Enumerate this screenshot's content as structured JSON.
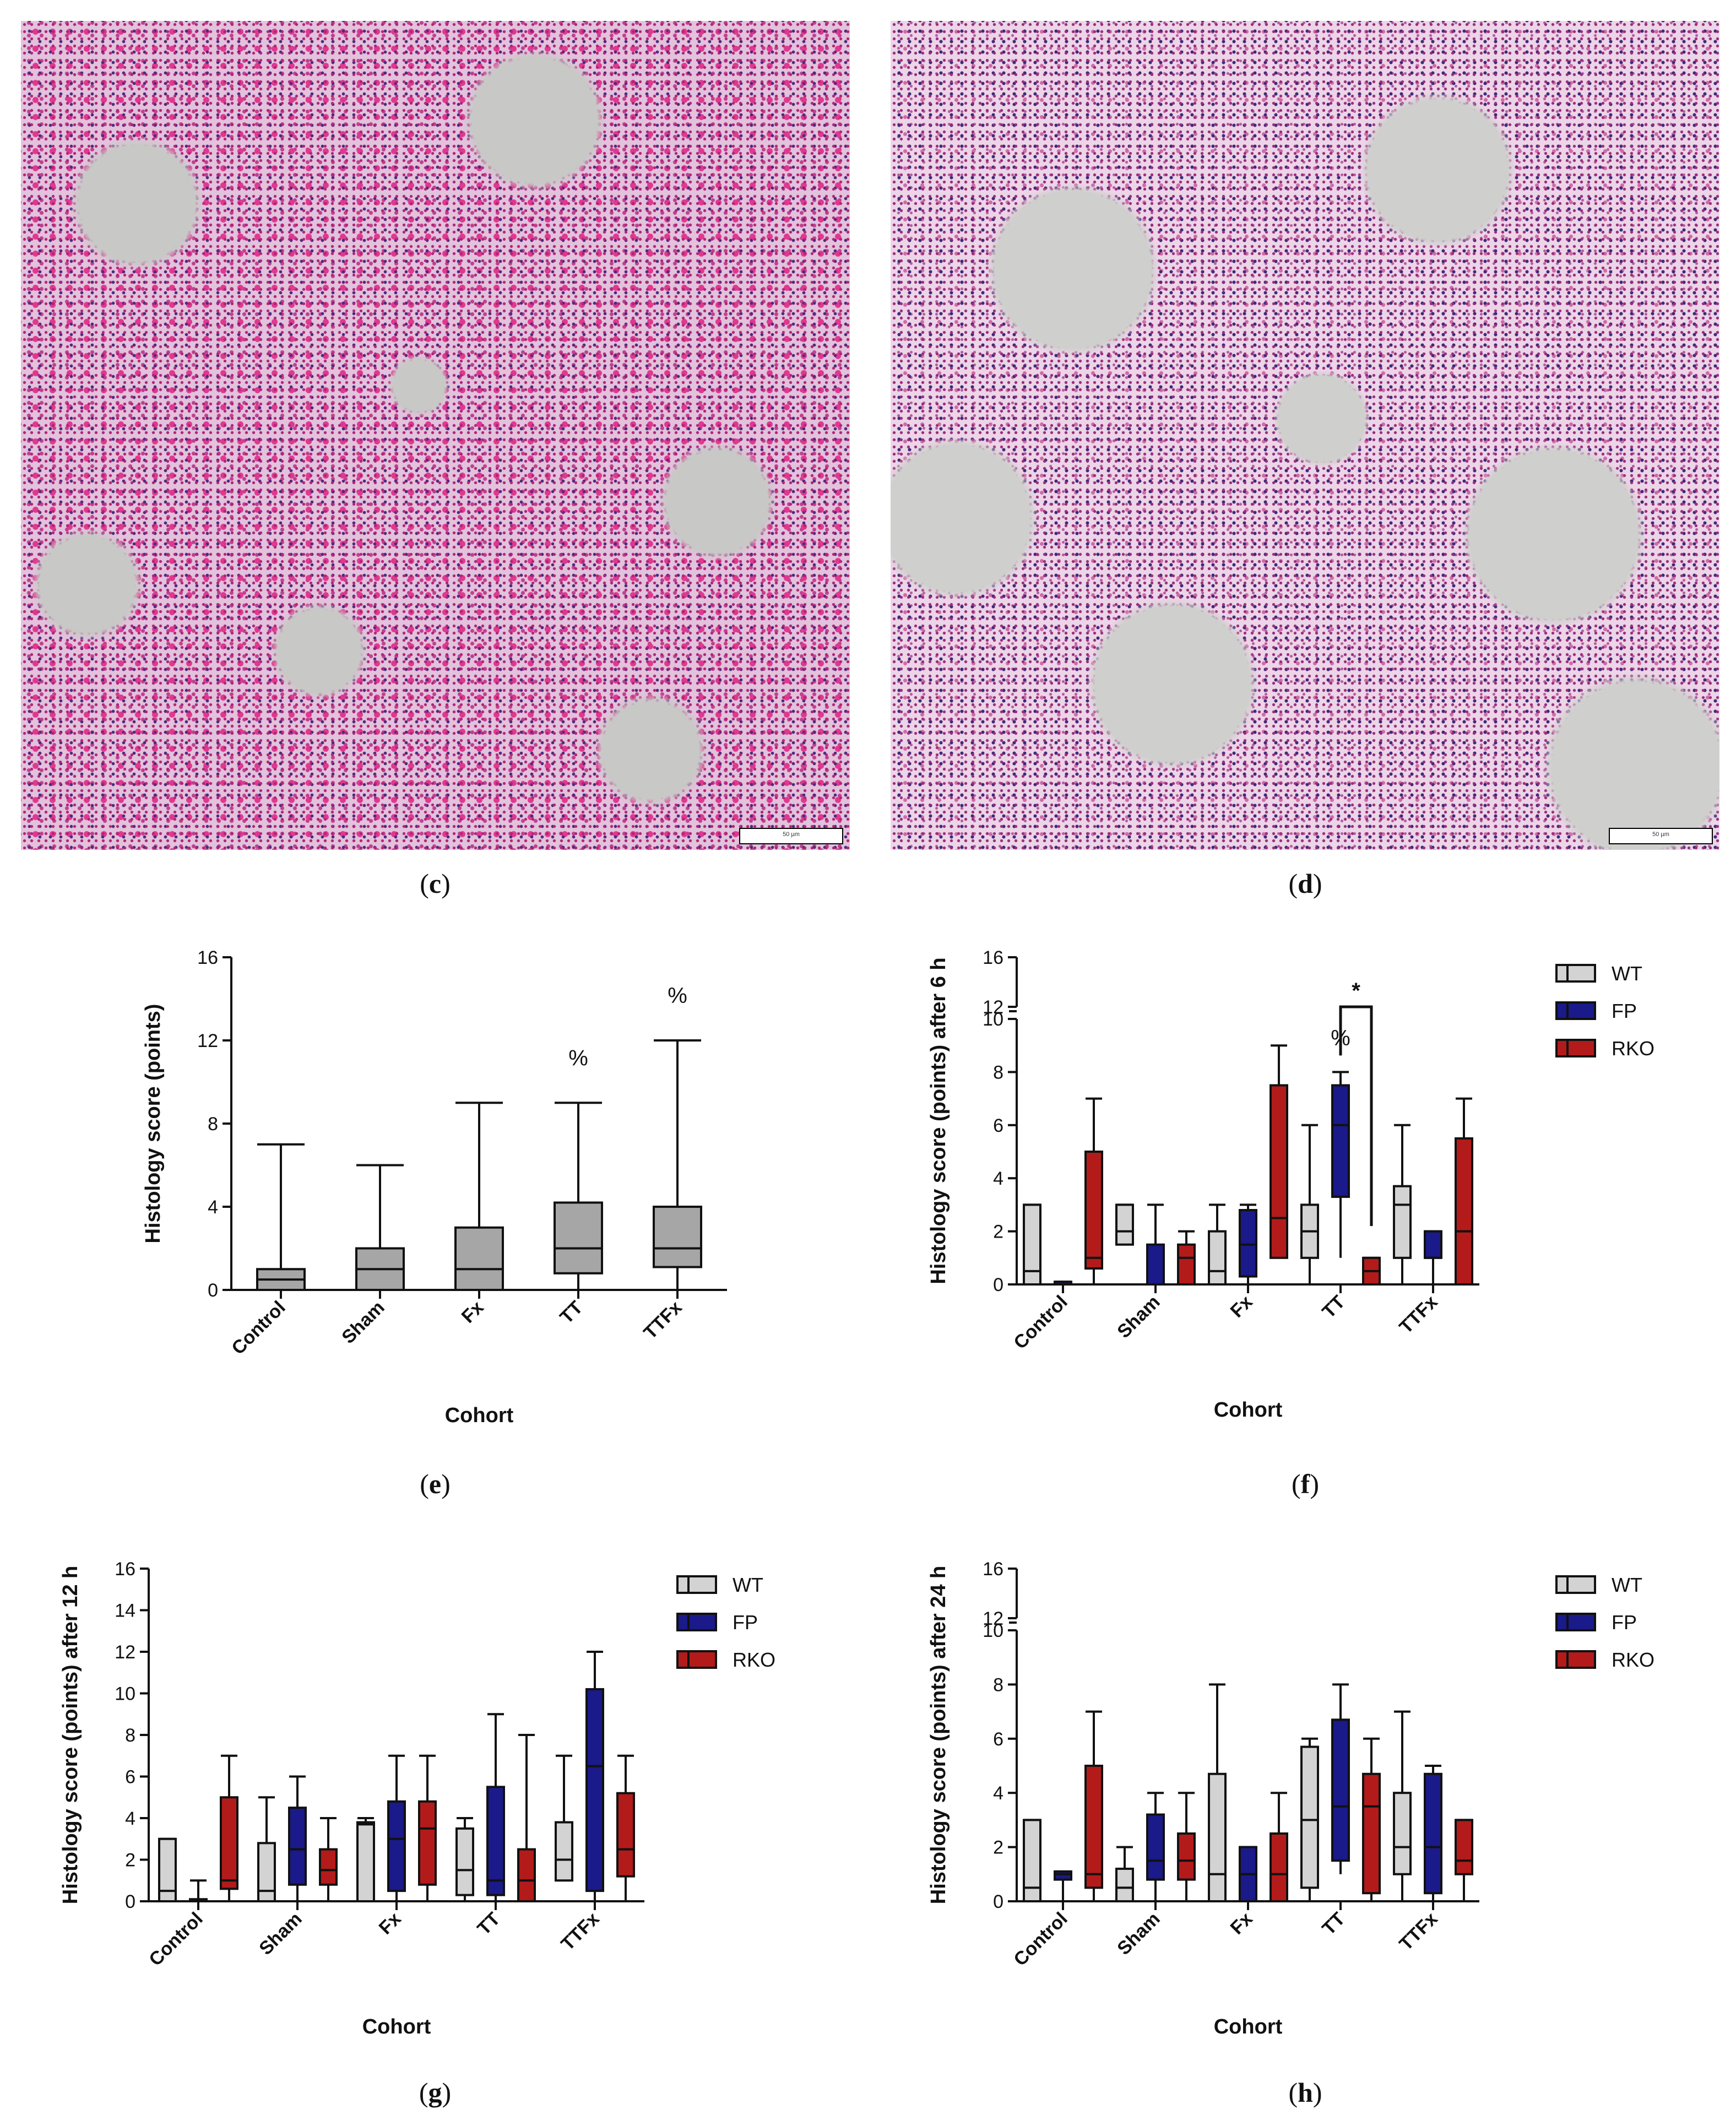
{
  "panels": {
    "c": "c",
    "d": "d",
    "e": "e",
    "f": "f",
    "g": "g",
    "h": "h"
  },
  "micrographs": {
    "c": {
      "scale_bar": "50 µm"
    },
    "d": {
      "scale_bar": "50 µm"
    }
  },
  "colors": {
    "WT": "#d3d3d3",
    "FP": "#1a1a8a",
    "RKO": "#b31b1b",
    "pooled": "#a6a6a6"
  },
  "chart_data": [
    {
      "id": "e",
      "type": "box",
      "title": "",
      "xlabel": "Cohort",
      "ylabel": "Histology score (points)",
      "ylim": [
        0,
        16
      ],
      "yticks": [
        0,
        4,
        8,
        12,
        16
      ],
      "categories": [
        "Control",
        "Sham",
        "Fx",
        "TT",
        "TTFx"
      ],
      "series": [
        {
          "color": "#a6a6a6",
          "boxes": [
            {
              "min": 0,
              "q1": 0,
              "median": 0.5,
              "q3": 1,
              "max": 7
            },
            {
              "min": 0,
              "q1": 0,
              "median": 1,
              "q3": 2,
              "max": 6
            },
            {
              "min": 0,
              "q1": 0,
              "median": 1,
              "q3": 3,
              "max": 9
            },
            {
              "min": 0,
              "q1": 0.8,
              "median": 2,
              "q3": 4.2,
              "max": 9
            },
            {
              "min": 0,
              "q1": 1.1,
              "median": 2,
              "q3": 4,
              "max": 12
            }
          ]
        }
      ],
      "annotations": [
        {
          "category": "TT",
          "text": "%",
          "y": 10.8
        },
        {
          "category": "TTFx",
          "text": "%",
          "y": 13.8
        }
      ]
    },
    {
      "id": "f",
      "type": "box",
      "title": "",
      "xlabel": "Cohort",
      "ylabel": "Histology score (points) after 6 h",
      "ylim": [
        0,
        16
      ],
      "axis_break": {
        "from": 10,
        "to": 12
      },
      "yticks": [
        0,
        2,
        4,
        6,
        8,
        10,
        12,
        16
      ],
      "categories": [
        "Control",
        "Sham",
        "Fx",
        "TT",
        "TTFx"
      ],
      "legend": [
        "WT",
        "FP",
        "RKO"
      ],
      "series": [
        {
          "name": "WT",
          "boxes": [
            {
              "min": 0,
              "q1": 0,
              "median": 0.5,
              "q3": 3,
              "max": 3
            },
            {
              "min": 1.5,
              "q1": 1.5,
              "median": 2,
              "q3": 3,
              "max": 3
            },
            {
              "min": 0,
              "q1": 0,
              "median": 0.5,
              "q3": 2,
              "max": 3
            },
            {
              "min": 0,
              "q1": 1,
              "median": 2,
              "q3": 3,
              "max": 6
            },
            {
              "min": 0,
              "q1": 1,
              "median": 3,
              "q3": 3.7,
              "max": 6
            }
          ]
        },
        {
          "name": "FP",
          "boxes": [
            {
              "min": 0,
              "q1": 0,
              "median": 0,
              "q3": 0.1,
              "max": 0.1
            },
            {
              "min": 0,
              "q1": 0,
              "median": 0,
              "q3": 1.5,
              "max": 3
            },
            {
              "min": 0,
              "q1": 0.3,
              "median": 1.5,
              "q3": 2.8,
              "max": 3
            },
            {
              "min": 1,
              "q1": 3.3,
              "median": 6,
              "q3": 7.5,
              "max": 8
            },
            {
              "min": 0,
              "q1": 1,
              "median": 1,
              "q3": 2,
              "max": 2
            }
          ]
        },
        {
          "name": "RKO",
          "boxes": [
            {
              "min": 0,
              "q1": 0.6,
              "median": 1,
              "q3": 5,
              "max": 7
            },
            {
              "min": 0,
              "q1": 0,
              "median": 1,
              "q3": 1.5,
              "max": 2
            },
            {
              "min": 1,
              "q1": 1,
              "median": 2.5,
              "q3": 7.5,
              "max": 9
            },
            {
              "min": 0,
              "q1": 0,
              "median": 0.5,
              "q3": 1,
              "max": 1
            },
            {
              "min": 0,
              "q1": 0,
              "median": 2,
              "q3": 5.5,
              "max": 7
            }
          ]
        }
      ],
      "annotations": [
        {
          "category": "TT",
          "series": "FP",
          "text": "%",
          "y": 9
        }
      ],
      "significance": {
        "category": "TT",
        "from": "FP",
        "to": "RKO",
        "y": 11,
        "drop_to": 2.2,
        "text": "*"
      }
    },
    {
      "id": "g",
      "type": "box",
      "title": "",
      "xlabel": "Cohort",
      "ylabel": "Histology score (points) after 12 h",
      "ylim": [
        0,
        16
      ],
      "yticks": [
        0,
        2,
        4,
        6,
        8,
        10,
        12,
        14,
        16
      ],
      "categories": [
        "Control",
        "Sham",
        "Fx",
        "TT",
        "TTFx"
      ],
      "legend": [
        "WT",
        "FP",
        "RKO"
      ],
      "series": [
        {
          "name": "WT",
          "boxes": [
            {
              "min": 0,
              "q1": 0,
              "median": 0.5,
              "q3": 3,
              "max": 3
            },
            {
              "min": 0,
              "q1": 0,
              "median": 0.5,
              "q3": 2.8,
              "max": 5
            },
            {
              "min": 0,
              "q1": 0,
              "median": 3.7,
              "q3": 3.8,
              "max": 4
            },
            {
              "min": 0,
              "q1": 0.3,
              "median": 1.5,
              "q3": 3.5,
              "max": 4
            },
            {
              "min": 1,
              "q1": 1,
              "median": 2,
              "q3": 3.8,
              "max": 7
            }
          ]
        },
        {
          "name": "FP",
          "boxes": [
            {
              "min": 0,
              "q1": 0,
              "median": 0,
              "q3": 0.1,
              "max": 1
            },
            {
              "min": 0,
              "q1": 0.8,
              "median": 2.5,
              "q3": 4.5,
              "max": 6
            },
            {
              "min": 0,
              "q1": 0.5,
              "median": 3,
              "q3": 4.8,
              "max": 7
            },
            {
              "min": 0,
              "q1": 0.3,
              "median": 1,
              "q3": 5.5,
              "max": 9
            },
            {
              "min": 0,
              "q1": 0.5,
              "median": 6.5,
              "q3": 10.2,
              "max": 12
            }
          ]
        },
        {
          "name": "RKO",
          "boxes": [
            {
              "min": 0,
              "q1": 0.6,
              "median": 1,
              "q3": 5,
              "max": 7
            },
            {
              "min": 0,
              "q1": 0.8,
              "median": 1.5,
              "q3": 2.5,
              "max": 4
            },
            {
              "min": 0,
              "q1": 0.8,
              "median": 3.5,
              "q3": 4.8,
              "max": 7
            },
            {
              "min": 0,
              "q1": 0,
              "median": 1,
              "q3": 2.5,
              "max": 8
            },
            {
              "min": 0,
              "q1": 1.2,
              "median": 2.5,
              "q3": 5.2,
              "max": 7
            }
          ]
        }
      ]
    },
    {
      "id": "h",
      "type": "box",
      "title": "",
      "xlabel": "Cohort",
      "ylabel": "Histology score (points) after 24 h",
      "ylim": [
        0,
        16
      ],
      "axis_break": {
        "from": 10,
        "to": 12
      },
      "yticks": [
        0,
        2,
        4,
        6,
        8,
        10,
        12,
        16
      ],
      "categories": [
        "Control",
        "Sham",
        "Fx",
        "TT",
        "TTFx"
      ],
      "legend": [
        "WT",
        "FP",
        "RKO"
      ],
      "series": [
        {
          "name": "WT",
          "boxes": [
            {
              "min": 0,
              "q1": 0,
              "median": 0.5,
              "q3": 3,
              "max": 3
            },
            {
              "min": 0,
              "q1": 0,
              "median": 0.5,
              "q3": 1.2,
              "max": 2
            },
            {
              "min": 0,
              "q1": 0,
              "median": 1,
              "q3": 4.7,
              "max": 8
            },
            {
              "min": 0,
              "q1": 0.5,
              "median": 3,
              "q3": 5.7,
              "max": 6
            },
            {
              "min": 0,
              "q1": 1,
              "median": 2,
              "q3": 4,
              "max": 7
            }
          ]
        },
        {
          "name": "FP",
          "boxes": [
            {
              "min": 0,
              "q1": 0.8,
              "median": 1,
              "q3": 1.1,
              "max": 1.1
            },
            {
              "min": 0,
              "q1": 0.8,
              "median": 1.5,
              "q3": 3.2,
              "max": 4
            },
            {
              "min": 0,
              "q1": 0,
              "median": 1,
              "q3": 2,
              "max": 2
            },
            {
              "min": 1,
              "q1": 1.5,
              "median": 3.5,
              "q3": 6.7,
              "max": 8
            },
            {
              "min": 0,
              "q1": 0.3,
              "median": 2,
              "q3": 4.7,
              "max": 5
            }
          ]
        },
        {
          "name": "RKO",
          "boxes": [
            {
              "min": 0,
              "q1": 0.5,
              "median": 1,
              "q3": 5,
              "max": 7
            },
            {
              "min": 0,
              "q1": 0.8,
              "median": 1.5,
              "q3": 2.5,
              "max": 4
            },
            {
              "min": 0,
              "q1": 0,
              "median": 1,
              "q3": 2.5,
              "max": 4
            },
            {
              "min": 0,
              "q1": 0.3,
              "median": 3.5,
              "q3": 4.7,
              "max": 6
            },
            {
              "min": 0,
              "q1": 1,
              "median": 1.5,
              "q3": 3,
              "max": 3
            }
          ]
        }
      ]
    }
  ]
}
